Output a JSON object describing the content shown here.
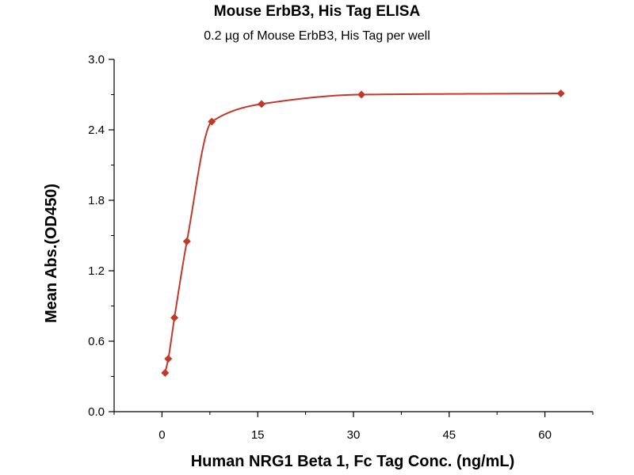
{
  "chart_data": {
    "type": "scatter",
    "title": "Mouse ErbB3, His Tag ELISA",
    "subtitle": "0.2 µg of Mouse ErbB3, His Tag per well",
    "xlabel": "Human NRG1 Beta 1, Fc Tag Conc. (ng/mL)",
    "ylabel": "Mean Abs.(OD450)",
    "xlim": [
      -7.5,
      67.5
    ],
    "ylim": [
      0,
      3.0
    ],
    "x_ticks": [
      0,
      15,
      30,
      45,
      60
    ],
    "x_tick_labels": [
      "0",
      "15",
      "30",
      "45",
      "60"
    ],
    "y_ticks": [
      0,
      0.6,
      1.2,
      1.8,
      2.4,
      3.0
    ],
    "y_tick_labels": [
      "0.0",
      "0.6",
      "1.2",
      "1.8",
      "2.4",
      "3.0"
    ],
    "grid": false,
    "series": [
      {
        "points": [
          {
            "x": 0.49,
            "y": 0.33
          },
          {
            "x": 0.98,
            "y": 0.45
          },
          {
            "x": 1.95,
            "y": 0.8
          },
          {
            "x": 3.9,
            "y": 1.45
          },
          {
            "x": 7.8,
            "y": 2.47
          },
          {
            "x": 15.6,
            "y": 2.62
          },
          {
            "x": 31.25,
            "y": 2.7
          },
          {
            "x": 62.5,
            "y": 2.71
          }
        ],
        "fit_curve": true,
        "color": "#c0392b"
      }
    ]
  }
}
